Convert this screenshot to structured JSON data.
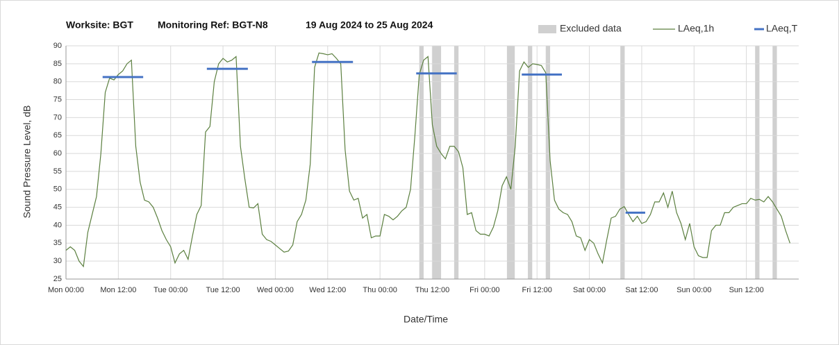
{
  "chart_data": {
    "type": "line",
    "title": [
      "Worksite: BGT",
      "Monitoring Ref: BGT-N8",
      "19 Aug 2024 to 25 Aug 2024"
    ],
    "xlabel": "Date/Time",
    "ylabel": "Sound Pressure Level, dB",
    "xlim": [
      0,
      168
    ],
    "ylim": [
      25,
      90
    ],
    "xticks": [
      {
        "value": 0,
        "label": "Mon 00:00"
      },
      {
        "value": 12,
        "label": "Mon 12:00"
      },
      {
        "value": 24,
        "label": "Tue 00:00"
      },
      {
        "value": 36,
        "label": "Tue 12:00"
      },
      {
        "value": 48,
        "label": "Wed 00:00"
      },
      {
        "value": 60,
        "label": "Wed 12:00"
      },
      {
        "value": 72,
        "label": "Thu 00:00"
      },
      {
        "value": 84,
        "label": "Thu 12:00"
      },
      {
        "value": 96,
        "label": "Fri 00:00"
      },
      {
        "value": 108,
        "label": "Fri 12:00"
      },
      {
        "value": 120,
        "label": "Sat 00:00"
      },
      {
        "value": 132,
        "label": "Sat 12:00"
      },
      {
        "value": 144,
        "label": "Sun 00:00"
      },
      {
        "value": 156,
        "label": "Sun 12:00"
      }
    ],
    "yticks": [
      25,
      30,
      35,
      40,
      45,
      50,
      55,
      60,
      65,
      70,
      75,
      80,
      85,
      90
    ],
    "grid": true,
    "excluded": {
      "name": "Excluded data",
      "color": "#d0d0d0",
      "ranges": [
        [
          81,
          82
        ],
        [
          83.9,
          86
        ],
        [
          89,
          90
        ],
        [
          101.1,
          102.9
        ],
        [
          105.9,
          106.9
        ],
        [
          110,
          111
        ],
        [
          127.1,
          128.1
        ],
        [
          158,
          159
        ],
        [
          162,
          163
        ]
      ]
    },
    "x": [
      0,
      1,
      2,
      3,
      4,
      5,
      6,
      7,
      8,
      9,
      10,
      11,
      12,
      13,
      14,
      15,
      16,
      17,
      18,
      19,
      20,
      21,
      22,
      23,
      24,
      25,
      26,
      27,
      28,
      29,
      30,
      31,
      32,
      33,
      34,
      35,
      36,
      37,
      38,
      39,
      40,
      41,
      42,
      43,
      44,
      45,
      46,
      47,
      48,
      49,
      50,
      51,
      52,
      53,
      54,
      55,
      56,
      57,
      58,
      59,
      60,
      61,
      62,
      63,
      64,
      65,
      66,
      67,
      68,
      69,
      70,
      71,
      72,
      73,
      74,
      75,
      76,
      77,
      78,
      79,
      80,
      81,
      82,
      83,
      84,
      85,
      86,
      87,
      88,
      89,
      90,
      91,
      92,
      93,
      94,
      95,
      96,
      97,
      98,
      99,
      100,
      101,
      102,
      103,
      104,
      105,
      106,
      107,
      108,
      109,
      110,
      111,
      112,
      113,
      114,
      115,
      116,
      117,
      118,
      119,
      120,
      121,
      122,
      123,
      124,
      125,
      126,
      127,
      128,
      129,
      130,
      131,
      132,
      133,
      134,
      135,
      136,
      137,
      138,
      139,
      140,
      141,
      142,
      143,
      144,
      145,
      146,
      147,
      148,
      149,
      150,
      151,
      152,
      153,
      154,
      155,
      156,
      157,
      158,
      159,
      160,
      161,
      162,
      163,
      164,
      165,
      166
    ],
    "series": [
      {
        "name": "LAeq,1h",
        "color": "#5b7f3f",
        "values": [
          33,
          34,
          33,
          30,
          28.5,
          38,
          43,
          48,
          60,
          77,
          81,
          80.5,
          82,
          83,
          85,
          86,
          62,
          52,
          47,
          46.5,
          45,
          42,
          38.5,
          36,
          34,
          29.5,
          32,
          33,
          30.5,
          37,
          43,
          45.5,
          66,
          67.5,
          80,
          85,
          86.5,
          85.5,
          86,
          87,
          62,
          53,
          45,
          44.8,
          46,
          37.5,
          36,
          35.5,
          34.5,
          33.5,
          32.5,
          32.8,
          34.5,
          41,
          43,
          47,
          57,
          84,
          88,
          87.8,
          87.5,
          87.8,
          86.5,
          85,
          61,
          49.5,
          47,
          47.5,
          42,
          43,
          36.5,
          37,
          37,
          43,
          42.5,
          41.5,
          42.5,
          44,
          45,
          50,
          65,
          82,
          86,
          87,
          68,
          62,
          60,
          58.5,
          62,
          62,
          60.5,
          56,
          43,
          43.5,
          38.5,
          37.5,
          37.5,
          37,
          39.5,
          44,
          51,
          53.5,
          50,
          62,
          83,
          85.5,
          84,
          85,
          84.8,
          84.5,
          82.5,
          58,
          47,
          44.5,
          43.5,
          43,
          41,
          37,
          36.5,
          33,
          36,
          35,
          32,
          29.5,
          36,
          42,
          42.5,
          44.5,
          45.2,
          43,
          41,
          42.5,
          40.5,
          41,
          43,
          46.5,
          46.5,
          49,
          45,
          49.5,
          43.5,
          40.5,
          36,
          40.5,
          34,
          31.5,
          31,
          31,
          38.5,
          40,
          40,
          43.5,
          43.5,
          45,
          45.5,
          46,
          46,
          47.5,
          47,
          47.2,
          46.5,
          48,
          46.5,
          44.5,
          42.5,
          38.5,
          35
        ]
      },
      {
        "name": "LAeq,T",
        "color": "#4472c4",
        "segments": [
          {
            "start": 8.4,
            "end": 17.7,
            "value": 81.3
          },
          {
            "start": 32.3,
            "end": 41.7,
            "value": 83.6
          },
          {
            "start": 56.4,
            "end": 65.8,
            "value": 85.5
          },
          {
            "start": 80.3,
            "end": 89.6,
            "value": 82.3
          },
          {
            "start": 104.5,
            "end": 113.7,
            "value": 82
          },
          {
            "start": 128.3,
            "end": 132.8,
            "value": 43.5
          }
        ]
      }
    ]
  }
}
